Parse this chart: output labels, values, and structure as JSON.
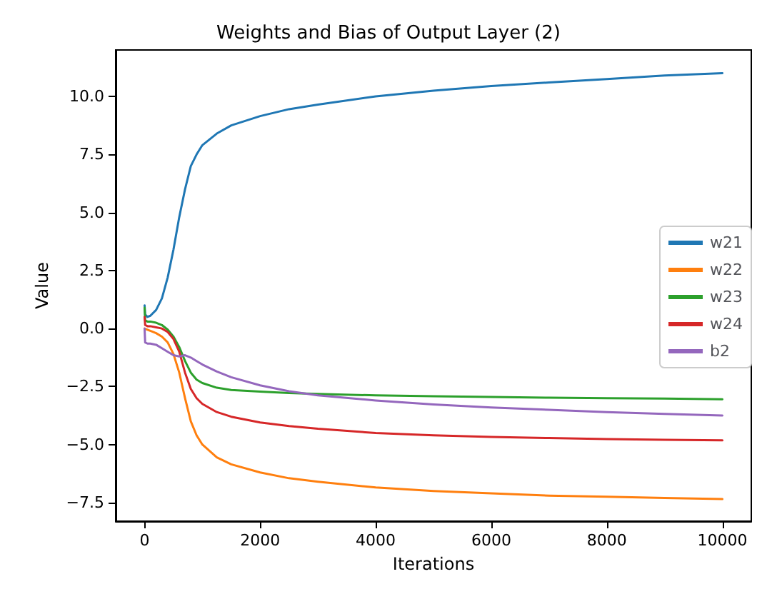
{
  "chart_data": {
    "type": "line",
    "title": "Weights and Bias of Output Layer (2)",
    "xlabel": "Iterations",
    "ylabel": "Value",
    "xlim": [
      -500,
      10500
    ],
    "xticks": [
      0,
      2000,
      4000,
      6000,
      8000,
      10000
    ],
    "ylim": [
      -8.3,
      12
    ],
    "yticks": [
      {
        "value": -7.5,
        "label": "−7.5"
      },
      {
        "value": -5,
        "label": "−5.0"
      },
      {
        "value": -2.5,
        "label": "−2.5"
      },
      {
        "value": 0,
        "label": "0.0"
      },
      {
        "value": 2.5,
        "label": "2.5"
      },
      {
        "value": 5,
        "label": "5.0"
      },
      {
        "value": 7.5,
        "label": "7.5"
      },
      {
        "value": 10,
        "label": "10.0"
      }
    ],
    "legend": "right",
    "grid": false,
    "marker": "none",
    "line_style": "solid",
    "x": [
      0,
      10,
      50,
      100,
      200,
      300,
      400,
      500,
      600,
      700,
      800,
      900,
      1000,
      1250,
      1500,
      2000,
      2500,
      3000,
      4000,
      5000,
      6000,
      7000,
      8000,
      9000,
      10000
    ],
    "series": [
      {
        "name": "w21",
        "color": "#1f77b4",
        "values": [
          1.0,
          0.6,
          0.5,
          0.55,
          0.8,
          1.3,
          2.2,
          3.4,
          4.8,
          6.0,
          7.0,
          7.5,
          7.9,
          8.4,
          8.75,
          9.15,
          9.45,
          9.65,
          10.0,
          10.25,
          10.45,
          10.6,
          10.75,
          10.9,
          11.0
        ]
      },
      {
        "name": "w22",
        "color": "#ff7f0e",
        "values": [
          0.0,
          0.0,
          -0.05,
          -0.1,
          -0.2,
          -0.35,
          -0.6,
          -1.1,
          -1.9,
          -3.0,
          -4.0,
          -4.6,
          -5.0,
          -5.55,
          -5.85,
          -6.2,
          -6.45,
          -6.6,
          -6.85,
          -7.0,
          -7.1,
          -7.2,
          -7.25,
          -7.3,
          -7.35
        ]
      },
      {
        "name": "w23",
        "color": "#2ca02c",
        "values": [
          0.9,
          0.35,
          0.3,
          0.3,
          0.25,
          0.15,
          -0.05,
          -0.35,
          -0.8,
          -1.4,
          -1.9,
          -2.2,
          -2.35,
          -2.55,
          -2.65,
          -2.72,
          -2.78,
          -2.82,
          -2.88,
          -2.92,
          -2.95,
          -2.98,
          -3.0,
          -3.02,
          -3.05
        ]
      },
      {
        "name": "w24",
        "color": "#d62728",
        "values": [
          0.5,
          0.15,
          0.1,
          0.1,
          0.05,
          0.0,
          -0.15,
          -0.45,
          -1.0,
          -1.9,
          -2.6,
          -3.0,
          -3.25,
          -3.6,
          -3.8,
          -4.05,
          -4.2,
          -4.32,
          -4.5,
          -4.6,
          -4.67,
          -4.72,
          -4.76,
          -4.79,
          -4.82
        ]
      },
      {
        "name": "b2",
        "color": "#9467bd",
        "values": [
          0.0,
          -0.6,
          -0.65,
          -0.65,
          -0.7,
          -0.85,
          -1.0,
          -1.15,
          -1.2,
          -1.15,
          -1.25,
          -1.4,
          -1.55,
          -1.85,
          -2.1,
          -2.45,
          -2.7,
          -2.88,
          -3.1,
          -3.27,
          -3.4,
          -3.5,
          -3.6,
          -3.68,
          -3.75
        ]
      }
    ]
  }
}
